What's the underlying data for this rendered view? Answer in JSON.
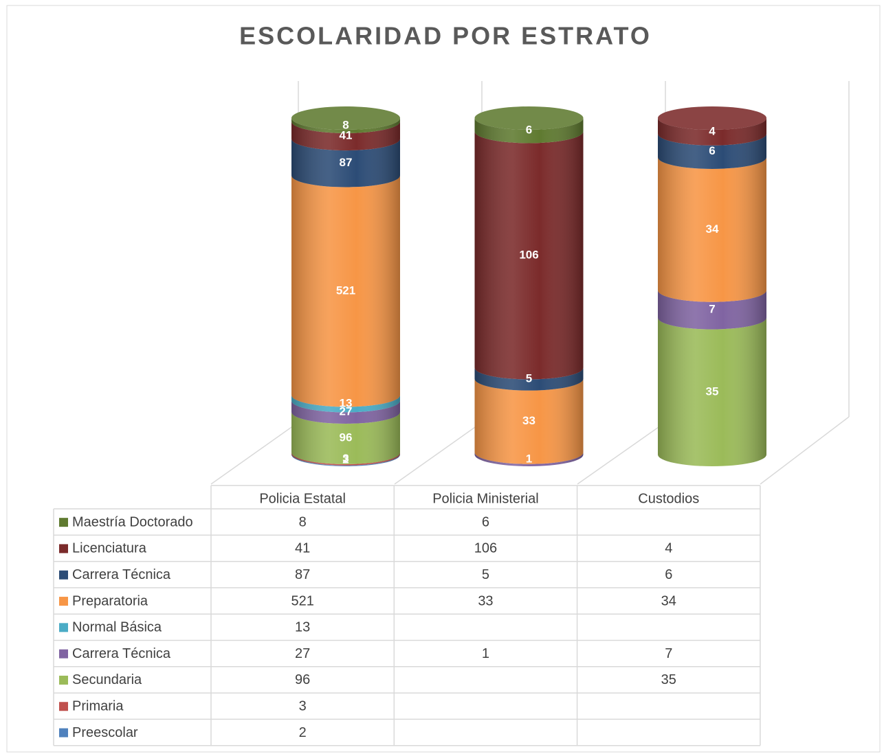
{
  "chart_data": {
    "type": "bar",
    "stacking": "percent",
    "shape": "cylinder",
    "title": "ESCOLARIDAD POR ESTRATO",
    "categories": [
      "Policia Estatal",
      "Policia Ministerial",
      "Custodios"
    ],
    "series": [
      {
        "name": "Maestría Doctorado",
        "color": "#5f7a30",
        "values": [
          8,
          6,
          null
        ]
      },
      {
        "name": "Licenciatura",
        "color": "#7b2b2b",
        "values": [
          41,
          106,
          4
        ]
      },
      {
        "name": "Carrera Técnica",
        "color": "#2c4c76",
        "values": [
          87,
          5,
          6
        ]
      },
      {
        "name": "Preparatoria",
        "color": "#f79646",
        "values": [
          521,
          33,
          34
        ]
      },
      {
        "name": "Normal Básica",
        "color": "#4bacc6",
        "values": [
          13,
          null,
          null
        ]
      },
      {
        "name": "Carrera Técnica",
        "color": "#8064a2",
        "values": [
          27,
          1,
          7
        ]
      },
      {
        "name": "Secundaria",
        "color": "#9bbb59",
        "values": [
          96,
          null,
          35
        ]
      },
      {
        "name": "Primaria",
        "color": "#c0504d",
        "values": [
          3,
          null,
          null
        ]
      },
      {
        "name": "Preescolar",
        "color": "#4f81bd",
        "values": [
          2,
          null,
          null
        ]
      }
    ],
    "data_table": true
  }
}
